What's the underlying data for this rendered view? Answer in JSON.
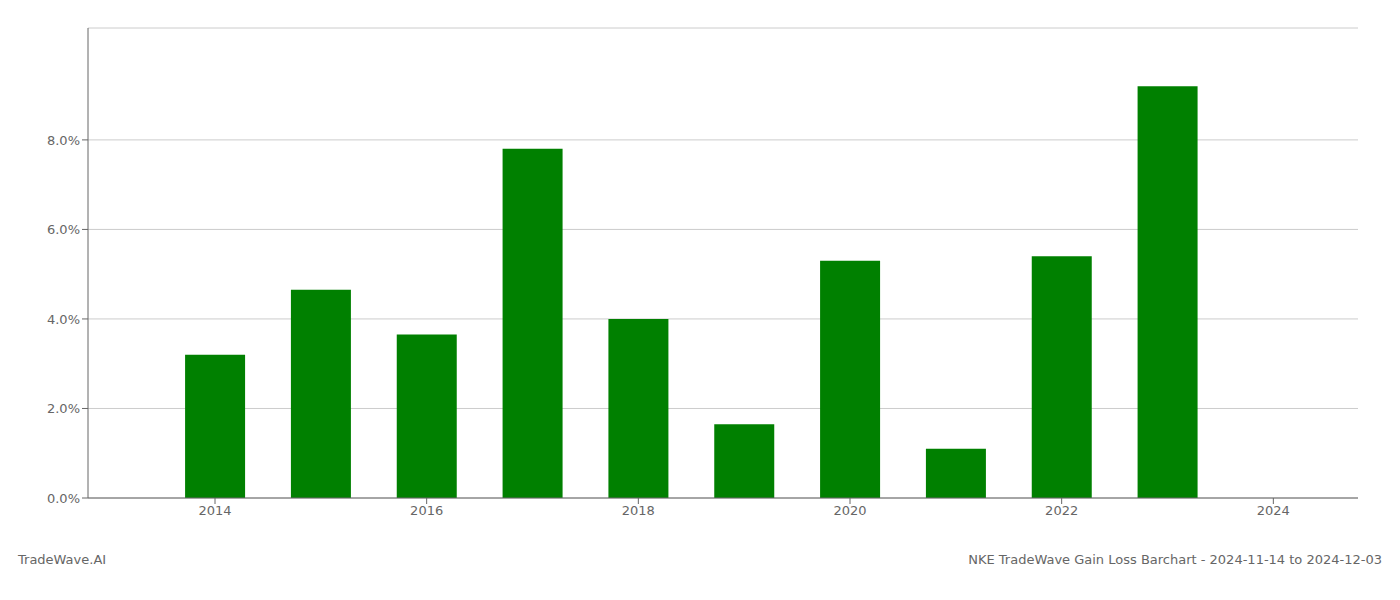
{
  "chart_data": {
    "type": "bar",
    "x": [
      2014,
      2015,
      2016,
      2017,
      2018,
      2019,
      2020,
      2021,
      2022,
      2023
    ],
    "values": [
      0.032,
      0.0465,
      0.0365,
      0.078,
      0.04,
      0.0165,
      0.053,
      0.011,
      0.054,
      0.092
    ],
    "color": "#008000",
    "xlim": [
      2012.8,
      2024.8
    ],
    "xticks": [
      2014,
      2016,
      2018,
      2020,
      2022,
      2024
    ],
    "ylim": [
      0,
      0.105
    ],
    "yticks": [
      {
        "value": 0.0,
        "label": "0.0%"
      },
      {
        "value": 0.02,
        "label": "2.0%"
      },
      {
        "value": 0.04,
        "label": "4.0%"
      },
      {
        "value": 0.06,
        "label": "6.0%"
      },
      {
        "value": 0.08,
        "label": "8.0%"
      }
    ],
    "grid": true,
    "annotations": [
      "TradeWave.AI",
      "NKE TradeWave Gain Loss Barchart - 2024-11-14 to 2024-12-03"
    ]
  }
}
